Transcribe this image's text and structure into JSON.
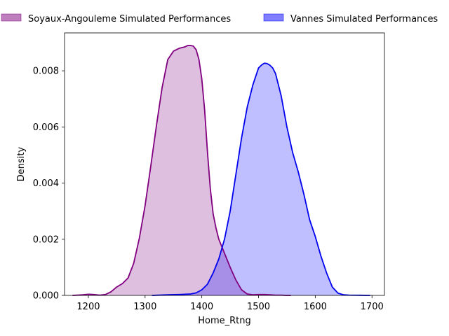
{
  "chart_data": {
    "type": "area",
    "title": "",
    "xlabel": "Home_Rtng",
    "ylabel": "Density",
    "xlim": [
      1158,
      1722
    ],
    "ylim": [
      0,
      0.00935
    ],
    "xticks": [
      1200,
      1300,
      1400,
      1500,
      1600,
      1700
    ],
    "xtick_labels": [
      "1200",
      "1300",
      "1400",
      "1500",
      "1600",
      "1700"
    ],
    "yticks": [
      0,
      0.002,
      0.004,
      0.006,
      0.008
    ],
    "ytick_labels": [
      "0.000",
      "0.002",
      "0.004",
      "0.006",
      "0.008"
    ],
    "grid": false,
    "legend_placement": "top, above plot",
    "series": [
      {
        "name": "Soyaux-Angouleme Simulated Performances",
        "line_color": "#800080",
        "fill_color": "#800080",
        "x": [
          1172,
          1190,
          1200,
          1210,
          1220,
          1230,
          1240,
          1250,
          1260,
          1270,
          1280,
          1290,
          1300,
          1310,
          1320,
          1330,
          1340,
          1350,
          1360,
          1370,
          1375,
          1380,
          1385,
          1390,
          1395,
          1400,
          1405,
          1410,
          1415,
          1420,
          1425,
          1430,
          1440,
          1450,
          1460,
          1470,
          1480,
          1490,
          1500,
          1510,
          1520,
          1530,
          1540,
          1550,
          1557
        ],
        "y": [
          0,
          2e-05,
          4e-05,
          3e-05,
          1e-05,
          3e-05,
          0.00013,
          0.0003,
          0.00042,
          0.00062,
          0.00115,
          0.00205,
          0.0032,
          0.0046,
          0.00605,
          0.0074,
          0.0084,
          0.0087,
          0.0088,
          0.00885,
          0.0089,
          0.0089,
          0.00888,
          0.00875,
          0.0084,
          0.0077,
          0.0066,
          0.0051,
          0.0038,
          0.0029,
          0.0024,
          0.002,
          0.0015,
          0.001,
          0.00055,
          0.0002,
          5e-05,
          2e-05,
          3e-05,
          3e-05,
          2e-05,
          1e-05,
          1e-05,
          0,
          0
        ]
      },
      {
        "name": "Vannes Simulated Performances",
        "line_color": "#0000ee",
        "fill_color": "#0000ff",
        "x": [
          1312,
          1340,
          1360,
          1380,
          1390,
          1400,
          1410,
          1420,
          1430,
          1440,
          1450,
          1460,
          1470,
          1480,
          1490,
          1500,
          1505,
          1510,
          1515,
          1520,
          1525,
          1530,
          1540,
          1550,
          1560,
          1570,
          1580,
          1590,
          1600,
          1610,
          1620,
          1630,
          1640,
          1650,
          1660,
          1680,
          1697
        ],
        "y": [
          0,
          2e-05,
          3e-05,
          5e-05,
          9e-05,
          0.0002,
          0.0004,
          0.0008,
          0.0013,
          0.002,
          0.003,
          0.0043,
          0.0056,
          0.0067,
          0.0075,
          0.0081,
          0.0082,
          0.00827,
          0.00826,
          0.0082,
          0.0081,
          0.0079,
          0.0071,
          0.006,
          0.0051,
          0.0044,
          0.0036,
          0.0027,
          0.0021,
          0.0014,
          0.0008,
          0.0003,
          8e-05,
          2e-05,
          1e-05,
          5e-06,
          0
        ]
      }
    ]
  }
}
